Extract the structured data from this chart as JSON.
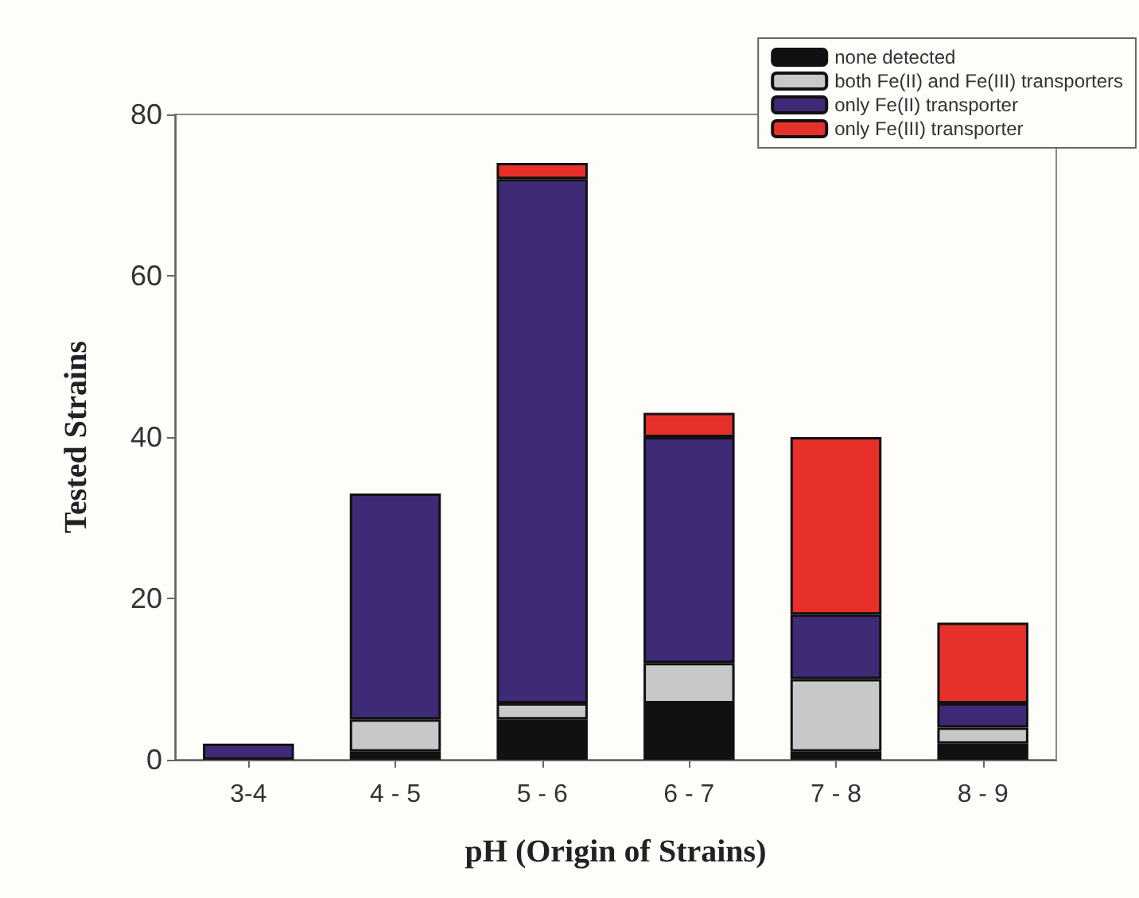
{
  "chart_data": {
    "type": "bar",
    "stacked": true,
    "xlabel": "pH (Origin of Strains)",
    "ylabel": "Tested Strains",
    "categories": [
      "3-4",
      "4 - 5",
      "5 - 6",
      "6 - 7",
      "7 - 8",
      "8 - 9"
    ],
    "series": [
      {
        "name": "none detected",
        "color": "#111111",
        "values": [
          0,
          1,
          5,
          7,
          1,
          2
        ]
      },
      {
        "name": "both Fe(II) and Fe(III) transporters",
        "color": "#c8c8c8",
        "values": [
          0,
          4,
          2,
          5,
          9,
          2
        ]
      },
      {
        "name": "only Fe(II) transporter",
        "color": "#3f2a78",
        "values": [
          2,
          28,
          65,
          28,
          8,
          3
        ]
      },
      {
        "name": "only Fe(III) transporter",
        "color": "#e8302a",
        "values": [
          0,
          0,
          2,
          3,
          22,
          10
        ]
      }
    ],
    "ylim": [
      0,
      80
    ],
    "yticks": [
      0,
      20,
      40,
      60,
      80
    ],
    "grid": false,
    "legend": "top right"
  }
}
